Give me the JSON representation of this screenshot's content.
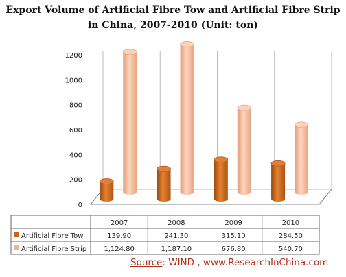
{
  "chart_data": {
    "type": "bar",
    "title_line1": "Export Volume of Artificial Fibre Tow and Artificial Fibre Strip",
    "title_line2": "in China, 2007-2010 (Unit: ton)",
    "categories": [
      "2007",
      "2008",
      "2009",
      "2010"
    ],
    "series": [
      {
        "name": "Artificial Fibre Tow",
        "values": [
          139.9,
          241.3,
          315.1,
          284.5
        ],
        "labels": [
          "139.90",
          "241.30",
          "315.10",
          "284.50"
        ],
        "color": "#c8651b"
      },
      {
        "name": "Artificial Fibre Strip",
        "values": [
          1124.8,
          1187.1,
          676.8,
          540.7
        ],
        "labels": [
          "1,124.80",
          "1,187.10",
          "676.80",
          "540.70"
        ],
        "color": "#f2b28c"
      }
    ],
    "ylim": [
      0,
      1200
    ],
    "yticks": [
      "0",
      "200",
      "400",
      "600",
      "800",
      "1000",
      "1200"
    ],
    "grid": false,
    "legend": "data-table",
    "style": "3d-cylinder"
  },
  "source": {
    "label": "Source",
    "text": ": WIND , www.ResearchInChina.com"
  }
}
